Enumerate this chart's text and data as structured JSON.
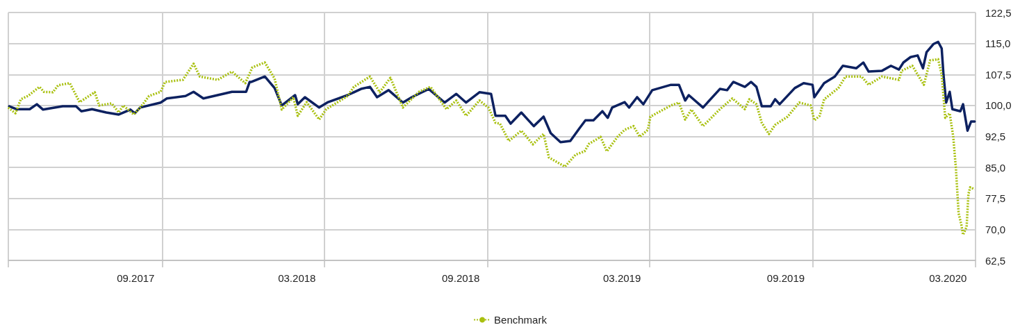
{
  "chart_data": {
    "type": "line",
    "xlim": [
      "2017-04-11",
      "2020-04-01"
    ],
    "xticks": [
      {
        "value": "2017-09-01",
        "label": "09.2017"
      },
      {
        "value": "2017-10-01",
        "label": null
      },
      {
        "value": "2018-03-01",
        "label": "03.2018"
      },
      {
        "value": "2018-04-01",
        "label": null
      },
      {
        "value": "2018-09-01",
        "label": "09.2018"
      },
      {
        "value": "2018-10-01",
        "label": null
      },
      {
        "value": "2019-03-01",
        "label": "03.2019"
      },
      {
        "value": "2019-04-01",
        "label": null
      },
      {
        "value": "2019-09-01",
        "label": "09.2019"
      },
      {
        "value": "2019-10-01",
        "label": null
      },
      {
        "value": "2020-03-01",
        "label": "03.2020"
      },
      {
        "value": "2020-04-01",
        "label": null
      }
    ],
    "ylim": [
      62.5,
      122.5
    ],
    "yticks": [
      {
        "value": 62.5,
        "label": "62,5"
      },
      {
        "value": 70,
        "label": "70,0"
      },
      {
        "value": 77.5,
        "label": "77,5"
      },
      {
        "value": 85,
        "label": "85,0"
      },
      {
        "value": 92.5,
        "label": "92,5"
      },
      {
        "value": 100,
        "label": "100,0"
      },
      {
        "value": 107.5,
        "label": "107,5"
      },
      {
        "value": 115,
        "label": "115,0"
      },
      {
        "value": 122.5,
        "label": "122,5"
      }
    ],
    "grid": true,
    "legend": "bottom",
    "marker": "none",
    "series": [
      {
        "color": "#0d2160",
        "line_style": "solid",
        "x": [
          "2017-04-12",
          "2017-04-20",
          "2017-05-05",
          "2017-05-13",
          "2017-05-20",
          "2017-06-11",
          "2017-06-26",
          "2017-07-02",
          "2017-07-14",
          "2017-07-30",
          "2017-08-13",
          "2017-08-26",
          "2017-08-31",
          "2017-09-06",
          "2017-09-29",
          "2017-10-06",
          "2017-10-27",
          "2017-11-05",
          "2017-11-16",
          "2017-12-02",
          "2017-12-18",
          "2018-01-03",
          "2018-01-07",
          "2018-01-09",
          "2018-01-24",
          "2018-02-04",
          "2018-02-12",
          "2018-02-27",
          "2018-03-02",
          "2018-03-10",
          "2018-03-26",
          "2018-04-05",
          "2018-04-27",
          "2018-05-12",
          "2018-05-22",
          "2018-05-30",
          "2018-06-12",
          "2018-06-28",
          "2018-07-08",
          "2018-07-27",
          "2018-08-14",
          "2018-08-27",
          "2018-09-07",
          "2018-09-22",
          "2018-10-05",
          "2018-10-10",
          "2018-10-21",
          "2018-10-27",
          "2018-11-08",
          "2018-11-22",
          "2018-12-03",
          "2018-12-11",
          "2018-12-22",
          "2019-01-02",
          "2019-01-12",
          "2019-01-19",
          "2019-01-28",
          "2019-02-07",
          "2019-02-13",
          "2019-02-18",
          "2019-03-04",
          "2019-03-09",
          "2019-03-18",
          "2019-03-25",
          "2019-04-04",
          "2019-04-25",
          "2019-05-04",
          "2019-05-11",
          "2019-05-15",
          "2019-05-31",
          "2019-06-19",
          "2019-06-27",
          "2019-07-04",
          "2019-07-17",
          "2019-07-24",
          "2019-07-30",
          "2019-08-05",
          "2019-08-15",
          "2019-08-20",
          "2019-08-25",
          "2019-09-11",
          "2019-09-21",
          "2019-10-01",
          "2019-10-03",
          "2019-10-14",
          "2019-10-26",
          "2019-11-04",
          "2019-11-19",
          "2019-11-27",
          "2019-12-03",
          "2019-12-18",
          "2019-12-28",
          "2020-01-06",
          "2020-01-11",
          "2020-01-19",
          "2020-01-27",
          "2020-02-02",
          "2020-02-06",
          "2020-02-14",
          "2020-02-19",
          "2020-02-23",
          "2020-02-25",
          "2020-02-28",
          "2020-03-03",
          "2020-03-06",
          "2020-03-15",
          "2020-03-18",
          "2020-03-23",
          "2020-03-27",
          "2020-03-31"
        ],
        "values": [
          99.8,
          99.1,
          99.1,
          100.3,
          99.0,
          99.8,
          99.8,
          98.6,
          99.1,
          98.3,
          97.8,
          99.0,
          98.1,
          99.5,
          100.7,
          101.7,
          102.3,
          103.3,
          101.7,
          102.5,
          103.3,
          103.3,
          105.7,
          105.7,
          107.0,
          104.2,
          100.0,
          102.5,
          100.3,
          102.0,
          99.5,
          100.8,
          102.5,
          104.0,
          104.5,
          102.0,
          103.7,
          100.7,
          102.0,
          104.0,
          100.7,
          102.8,
          100.7,
          103.2,
          102.8,
          97.5,
          97.5,
          95.6,
          98.3,
          95.0,
          97.3,
          93.3,
          91.1,
          91.4,
          94.4,
          96.4,
          96.4,
          98.6,
          97.0,
          99.5,
          100.8,
          99.5,
          102.0,
          100.3,
          103.7,
          105.0,
          105.0,
          101.2,
          102.5,
          99.5,
          104.0,
          103.7,
          105.7,
          104.5,
          105.7,
          104.5,
          99.8,
          99.8,
          101.5,
          100.3,
          104.2,
          105.4,
          105.0,
          102.0,
          105.4,
          107.0,
          109.6,
          109.0,
          110.4,
          108.2,
          108.4,
          109.6,
          108.7,
          110.4,
          111.7,
          112.1,
          109.0,
          112.9,
          114.9,
          115.4,
          113.8,
          107.5,
          100.7,
          103.3,
          99.1,
          98.6,
          100.3,
          93.9,
          96.1,
          96.1
        ]
      },
      {
        "name": "Benchmark",
        "color": "#a9c00f",
        "line_style": "dotted",
        "x": [
          "2017-04-11",
          "2017-04-19",
          "2017-04-25",
          "2017-05-03",
          "2017-05-16",
          "2017-05-21",
          "2017-05-31",
          "2017-06-06",
          "2017-06-19",
          "2017-06-30",
          "2017-07-17",
          "2017-07-22",
          "2017-08-05",
          "2017-08-13",
          "2017-08-18",
          "2017-08-30",
          "2017-09-08",
          "2017-09-16",
          "2017-09-29",
          "2017-10-04",
          "2017-10-24",
          "2017-11-05",
          "2017-11-12",
          "2017-12-02",
          "2017-12-18",
          "2018-01-02",
          "2018-01-10",
          "2018-01-24",
          "2018-02-04",
          "2018-02-12",
          "2018-02-25",
          "2018-03-02",
          "2018-03-12",
          "2018-03-26",
          "2018-04-03",
          "2018-04-27",
          "2018-05-04",
          "2018-05-22",
          "2018-06-02",
          "2018-06-14",
          "2018-06-28",
          "2018-07-16",
          "2018-07-29",
          "2018-08-16",
          "2018-08-27",
          "2018-09-07",
          "2018-09-22",
          "2018-10-02",
          "2018-10-10",
          "2018-10-15",
          "2018-10-25",
          "2018-11-08",
          "2018-11-21",
          "2018-12-03",
          "2018-12-09",
          "2018-12-27",
          "2019-01-08",
          "2019-01-18",
          "2019-01-23",
          "2019-02-05",
          "2019-02-12",
          "2019-02-24",
          "2019-03-04",
          "2019-03-14",
          "2019-03-21",
          "2019-03-30",
          "2019-04-02",
          "2019-04-25",
          "2019-05-04",
          "2019-05-11",
          "2019-05-18",
          "2019-05-31",
          "2019-06-19",
          "2019-07-03",
          "2019-07-17",
          "2019-07-22",
          "2019-07-30",
          "2019-08-05",
          "2019-08-13",
          "2019-08-20",
          "2019-09-03",
          "2019-09-16",
          "2019-09-29",
          "2019-10-03",
          "2019-10-09",
          "2019-10-14",
          "2019-10-30",
          "2019-11-07",
          "2019-11-25",
          "2019-12-03",
          "2019-12-18",
          "2020-01-06",
          "2020-01-09",
          "2020-01-21",
          "2020-01-27",
          "2020-02-03",
          "2020-02-10",
          "2020-02-19",
          "2020-02-23",
          "2020-02-27",
          "2020-03-03",
          "2020-03-07",
          "2020-03-10",
          "2020-03-13",
          "2020-03-16",
          "2020-03-18",
          "2020-03-22",
          "2020-03-24",
          "2020-03-26",
          "2020-03-31"
        ],
        "values": [
          99.5,
          98.1,
          101.5,
          102.3,
          104.5,
          103.3,
          103.2,
          104.9,
          105.4,
          100.8,
          103.2,
          100.0,
          100.5,
          98.3,
          100.0,
          97.8,
          100.0,
          102.3,
          103.3,
          105.7,
          106.2,
          110.1,
          107.0,
          106.2,
          108.2,
          105.4,
          109.2,
          110.4,
          106.5,
          99.0,
          102.0,
          97.5,
          100.8,
          96.6,
          99.1,
          102.3,
          104.5,
          107.0,
          103.2,
          106.7,
          99.5,
          103.3,
          104.5,
          99.1,
          101.2,
          97.5,
          101.2,
          99.5,
          95.8,
          95.6,
          91.4,
          93.9,
          90.6,
          93.1,
          87.4,
          85.2,
          88.1,
          88.9,
          90.7,
          92.4,
          88.9,
          92.4,
          94.1,
          95.0,
          92.4,
          94.1,
          97.3,
          100.0,
          100.7,
          96.6,
          99.0,
          95.0,
          99.1,
          101.7,
          99.1,
          101.5,
          100.3,
          95.8,
          93.1,
          95.3,
          97.3,
          100.7,
          100.0,
          96.4,
          97.5,
          101.5,
          104.2,
          107.0,
          107.0,
          105.0,
          107.0,
          106.2,
          108.4,
          109.6,
          107.5,
          105.0,
          110.9,
          111.2,
          107.5,
          97.0,
          98.1,
          92.4,
          84.7,
          73.9,
          71.2,
          68.7,
          70.6,
          78.5,
          80.2,
          79.7
        ]
      }
    ]
  }
}
